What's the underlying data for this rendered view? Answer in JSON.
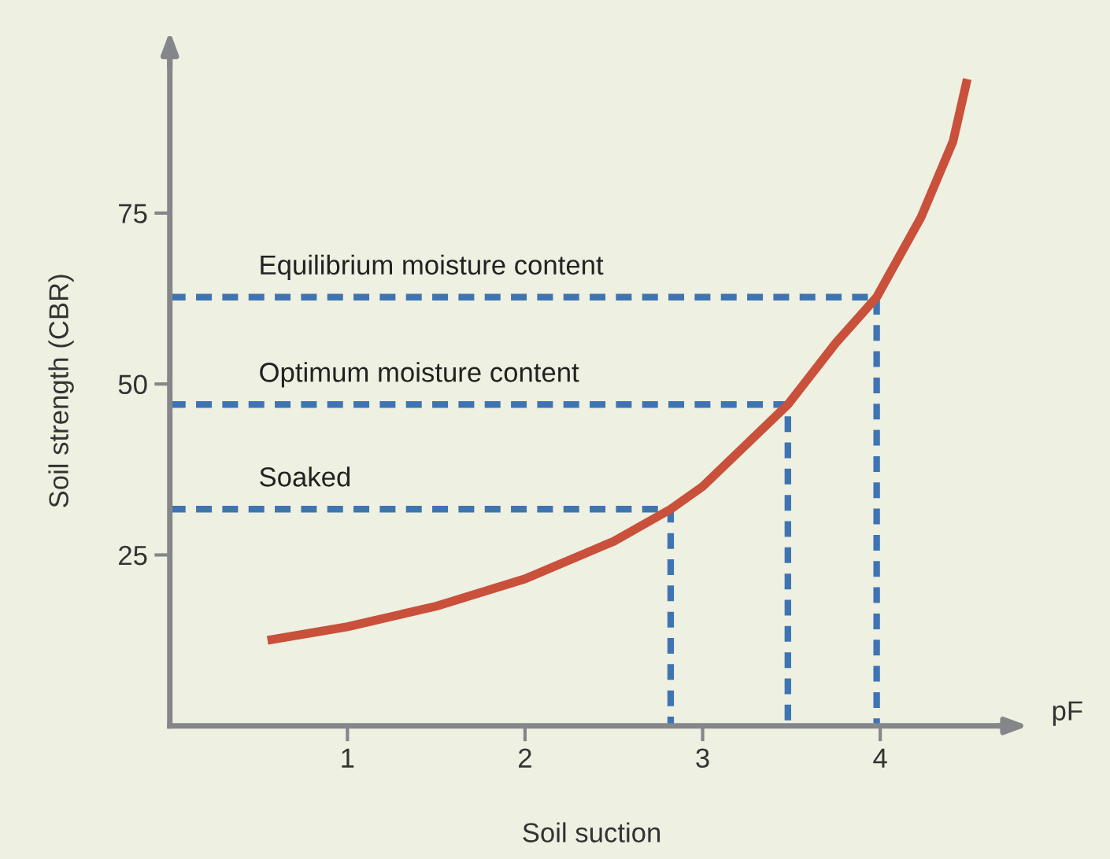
{
  "chart_data": {
    "type": "line",
    "xlabel": "Soil suction",
    "ylabel": "Soil strength (CBR)",
    "xlim": [
      0,
      4.75
    ],
    "ylim": [
      0,
      98
    ],
    "xticks": [
      1,
      2,
      3,
      4
    ],
    "yticks": [
      25,
      50,
      75
    ],
    "grid": false,
    "legend": false,
    "marker": "none",
    "series": [
      {
        "color": "#c9503a",
        "line_style": "solid",
        "x": [
          0.55,
          1.0,
          1.5,
          2.0,
          2.5,
          2.82,
          3.0,
          3.48,
          3.75,
          3.98,
          4.23,
          4.41,
          4.49
        ],
        "values": [
          12.5,
          14.5,
          17.5,
          21.5,
          27,
          31.7,
          35,
          47,
          56,
          62.7,
          74.4,
          85.5,
          94.6
        ]
      },
      {
        "name": "Soaked",
        "color": "#3f74b2",
        "line_style": "dashed",
        "x": [
          0,
          2.82,
          2.82
        ],
        "values": [
          31.7,
          31.7,
          0
        ]
      },
      {
        "name": "Optimum moisture content",
        "color": "#3f74b2",
        "line_style": "dashed",
        "x": [
          0,
          3.48,
          3.48
        ],
        "values": [
          47,
          47,
          0
        ]
      },
      {
        "name": "Equilibrium moisture content",
        "color": "#3f74b2",
        "line_style": "dashed",
        "x": [
          0,
          3.98,
          3.98
        ],
        "values": [
          62.7,
          62.7,
          0
        ]
      }
    ],
    "annotations": [
      "pF"
    ]
  }
}
